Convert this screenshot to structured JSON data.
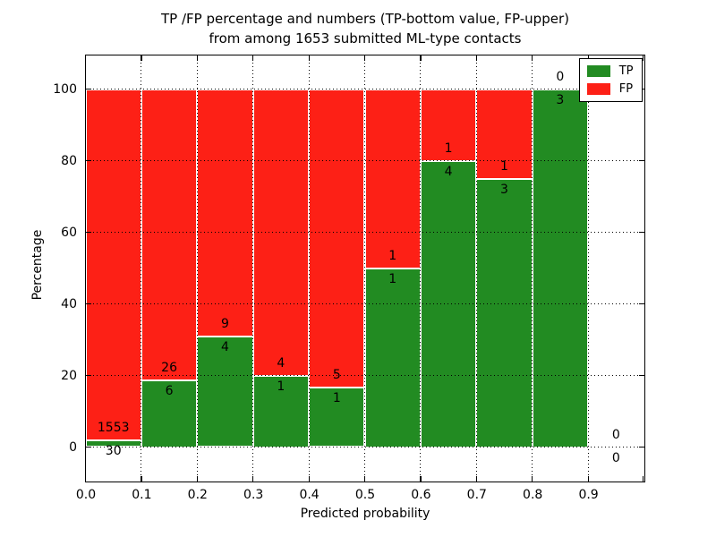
{
  "chart_data": {
    "type": "bar",
    "subtype": "stacked-percentage-histogram",
    "title": "TP /FP percentage and numbers (TP-bottom value, FP-upper) from among 1653 submitted ML-type contacts",
    "title_lines": [
      "TP /FP percentage and numbers (TP-bottom value, FP-upper)",
      "from among 1653 submitted ML-type contacts"
    ],
    "xlabel": "Predicted probability",
    "ylabel": "Percentage",
    "xlim": [
      0.0,
      1.0
    ],
    "ylim": [
      -10,
      110
    ],
    "x_tick_labels": [
      "0.0",
      "0.1",
      "0.2",
      "0.3",
      "0.4",
      "0.5",
      "0.6",
      "0.7",
      "0.8",
      "0.9"
    ],
    "x_tick_values": [
      0.0,
      0.1,
      0.2,
      0.3,
      0.4,
      0.5,
      0.6,
      0.7,
      0.8,
      0.9
    ],
    "y_tick_labels": [
      "0",
      "20",
      "40",
      "60",
      "80",
      "100"
    ],
    "y_tick_values": [
      0,
      20,
      40,
      60,
      80,
      100
    ],
    "grid": true,
    "grid_style": "dotted",
    "total_contacts": 1653,
    "legend": {
      "position": "upper right",
      "entries": [
        {
          "label": "TP",
          "color": "#228b22"
        },
        {
          "label": "FP",
          "color": "#fd2016"
        }
      ]
    },
    "bins": [
      {
        "range": [
          0.0,
          0.1
        ],
        "tp": 30,
        "fp": 1553,
        "tp_pct": 1.9
      },
      {
        "range": [
          0.1,
          0.2
        ],
        "tp": 6,
        "fp": 26,
        "tp_pct": 18.75
      },
      {
        "range": [
          0.2,
          0.3
        ],
        "tp": 4,
        "fp": 9,
        "tp_pct": 30.77
      },
      {
        "range": [
          0.3,
          0.4
        ],
        "tp": 1,
        "fp": 4,
        "tp_pct": 20.0
      },
      {
        "range": [
          0.4,
          0.5
        ],
        "tp": 1,
        "fp": 5,
        "tp_pct": 16.67
      },
      {
        "range": [
          0.5,
          0.6
        ],
        "tp": 1,
        "fp": 1,
        "tp_pct": 50.0
      },
      {
        "range": [
          0.6,
          0.7
        ],
        "tp": 4,
        "fp": 1,
        "tp_pct": 80.0
      },
      {
        "range": [
          0.7,
          0.8
        ],
        "tp": 3,
        "fp": 1,
        "tp_pct": 75.0
      },
      {
        "range": [
          0.8,
          0.9
        ],
        "tp": 3,
        "fp": 0,
        "tp_pct": 100.0
      },
      {
        "range": [
          0.9,
          1.0
        ],
        "tp": 0,
        "fp": 0,
        "tp_pct": null
      }
    ],
    "colors": {
      "tp": "#228b22",
      "fp": "#fd2016",
      "bar_edge": "#ffffff",
      "grid": "#000000",
      "text": "#000000",
      "background": "#ffffff"
    }
  }
}
